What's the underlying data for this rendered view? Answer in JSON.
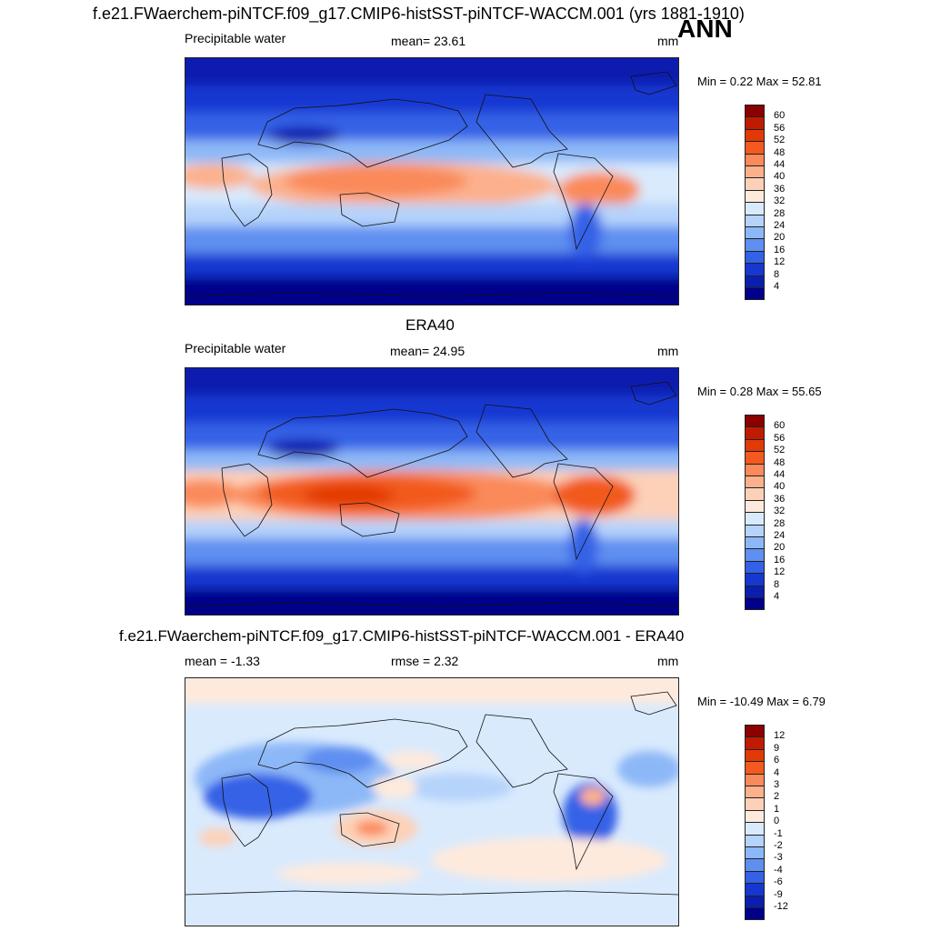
{
  "main_title": "f.e21.FWaerchem-piNTCF.f09_g17.CMIP6-histSST-piNTCF-WACCM.001 (yrs 1881-1910)",
  "season": "ANN",
  "panels": [
    {
      "title": "",
      "left_label": "Precipitable water",
      "center_label": "mean=  23.61",
      "units": "mm",
      "minmax": "Min =   0.22 Max =  52.81",
      "colorbar": {
        "labels": [
          "60",
          "56",
          "52",
          "48",
          "44",
          "40",
          "36",
          "32",
          "28",
          "24",
          "20",
          "16",
          "12",
          "8",
          "4"
        ],
        "colors": [
          "#8b0000",
          "#c01b00",
          "#e23a05",
          "#f25a1f",
          "#fa8a5a",
          "#fcb08c",
          "#fdd1b8",
          "#feeadd",
          "#d9eafd",
          "#b5d3fb",
          "#8db8f7",
          "#5f8ff0",
          "#3462e6",
          "#1638d1",
          "#0a1fae",
          "#00008b"
        ]
      }
    },
    {
      "title": "ERA40",
      "left_label": "Precipitable water",
      "center_label": "mean=  24.95",
      "units": "mm",
      "minmax": "Min =   0.28 Max =  55.65",
      "colorbar": {
        "labels": [
          "60",
          "56",
          "52",
          "48",
          "44",
          "40",
          "36",
          "32",
          "28",
          "24",
          "20",
          "16",
          "12",
          "8",
          "4"
        ],
        "colors": [
          "#8b0000",
          "#c01b00",
          "#e23a05",
          "#f25a1f",
          "#fa8a5a",
          "#fcb08c",
          "#fdd1b8",
          "#feeadd",
          "#d9eafd",
          "#b5d3fb",
          "#8db8f7",
          "#5f8ff0",
          "#3462e6",
          "#1638d1",
          "#0a1fae",
          "#00008b"
        ]
      }
    },
    {
      "title": "f.e21.FWaerchem-piNTCF.f09_g17.CMIP6-histSST-piNTCF-WACCM.001 - ERA40",
      "left_label": "mean =  -1.33",
      "center_label": "rmse =   2.32",
      "units": "mm",
      "minmax": "Min = -10.49 Max =   6.79",
      "colorbar": {
        "labels": [
          "12",
          "9",
          "6",
          "4",
          "3",
          "2",
          "1",
          "0",
          "-1",
          "-2",
          "-3",
          "-4",
          "-6",
          "-9",
          "-12"
        ],
        "colors": [
          "#8b0000",
          "#c01b00",
          "#e23a05",
          "#f25a1f",
          "#fa8a5a",
          "#fcb08c",
          "#fdd1b8",
          "#feeadd",
          "#d9eafd",
          "#b5d3fb",
          "#8db8f7",
          "#5f8ff0",
          "#3462e6",
          "#1638d1",
          "#0a1fae",
          "#00008b"
        ]
      }
    }
  ]
}
